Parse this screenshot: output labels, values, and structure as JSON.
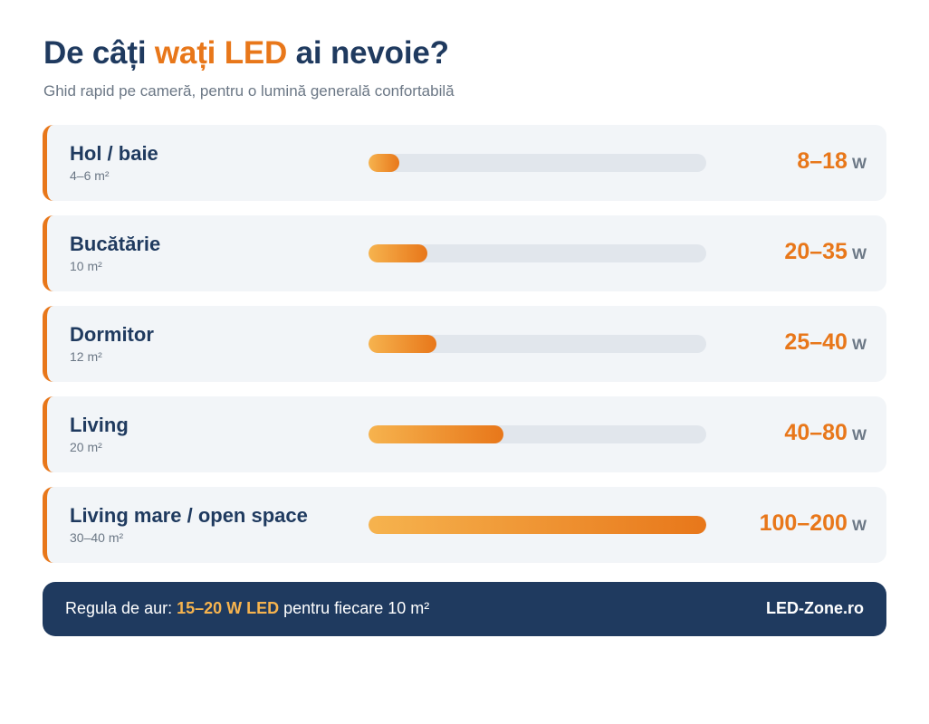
{
  "header": {
    "title_before": "De câți ",
    "title_accent": "wați LED",
    "title_after": " ai nevoie?",
    "subtitle": "Ghid rapid pe cameră, pentru o lumină generală confortabilă"
  },
  "colors": {
    "accent": "#e8771a",
    "accent_light": "#f6b34e",
    "navy": "#1f3a5f",
    "track": "#e1e6ec",
    "row_bg": "#f2f5f8"
  },
  "chart_data": {
    "type": "bar",
    "orientation": "horizontal",
    "unit": "W",
    "xlim": [
      0,
      200
    ],
    "categories": [
      "Hol / baie",
      "Bucătărie",
      "Dormitor",
      "Living",
      "Living mare / open space"
    ],
    "areas": [
      "4–6 m²",
      "10 m²",
      "12 m²",
      "20 m²",
      "30–40 m²"
    ],
    "range_labels": [
      "8–18",
      "20–35",
      "25–40",
      "40–80",
      "100–200"
    ],
    "values_min": [
      8,
      20,
      25,
      40,
      100
    ],
    "values_max": [
      18,
      35,
      40,
      80,
      200
    ]
  },
  "footer": {
    "rule_before": "Regula de aur: ",
    "rule_highlight": "15–20 W LED",
    "rule_after": " pentru fiecare 10 m²",
    "brand": "LED-Zone.ro"
  }
}
